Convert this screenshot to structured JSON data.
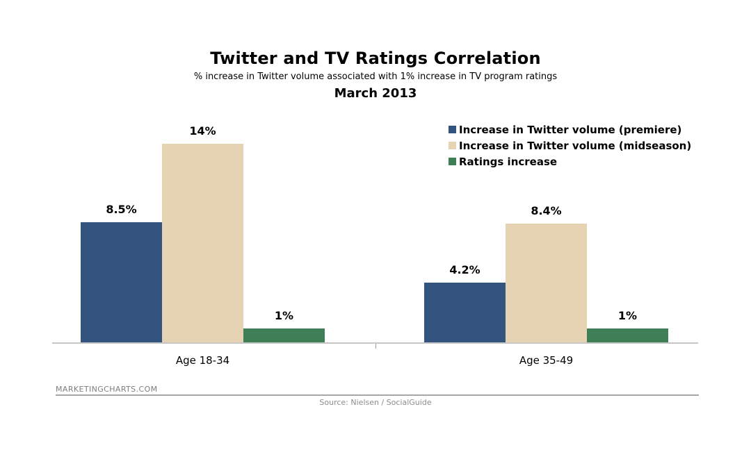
{
  "chart_data": {
    "type": "bar",
    "title": "Twitter and TV Ratings Correlation",
    "subtitle": "% increase in Twitter volume associated with 1% increase in TV program ratings",
    "period": "March 2013",
    "categories": [
      "Age 18-34",
      "Age 35-49"
    ],
    "series": [
      {
        "name": "Increase in Twitter volume (premiere)",
        "color": "#33547E",
        "values": [
          8.5,
          4.2
        ],
        "value_labels": [
          "8.5%",
          "4.2%"
        ]
      },
      {
        "name": "Increase in Twitter volume (midseason)",
        "color": "#E5D3B4",
        "values": [
          14,
          8.4
        ],
        "value_labels": [
          "14%",
          "8.4%"
        ]
      },
      {
        "name": "Ratings increase",
        "color": "#3E7F58",
        "values": [
          1,
          1
        ],
        "value_labels": [
          "1%",
          "1%"
        ]
      }
    ],
    "unit": "%",
    "ylim": [
      0,
      16
    ],
    "grid": false,
    "legend_position": "top-right"
  },
  "footer": {
    "brand": "MARKETINGCHARTS.COM",
    "source": "Source: Nielsen / SocialGuide"
  },
  "colors": {
    "axis_line": "#C6C6C6",
    "axis_tick": "#999999",
    "footer_rule": "#A6A6A6",
    "footer_brand_text": "#7D7D7D",
    "footer_source_text": "#8C8C8C"
  }
}
